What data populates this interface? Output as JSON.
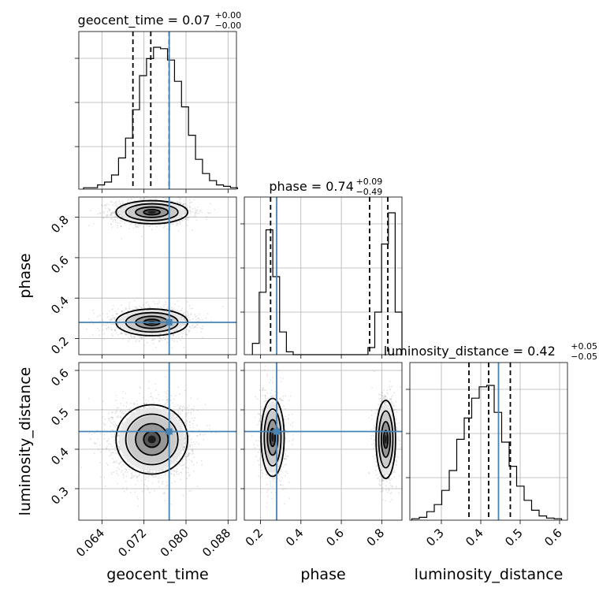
{
  "chart_data": {
    "type": "corner",
    "parameters": [
      "geocent_time",
      "phase",
      "luminosity_distance"
    ],
    "titles": [
      {
        "param": "geocent_time",
        "main": "geocent_time = 0.07",
        "sup": "+0.00",
        "sub": "−0.00"
      },
      {
        "param": "phase",
        "main": "phase = 0.74",
        "sup": "+0.09",
        "sub": "−0.49"
      },
      {
        "param": "luminosity_distance",
        "main": "luminosity_distance = 0.42",
        "sup": "+0.05",
        "sub": "−0.05"
      }
    ],
    "axis_labels": {
      "x": [
        "geocent_time",
        "phase",
        "luminosity_distance"
      ],
      "y": [
        "phase",
        "luminosity_distance"
      ]
    },
    "ranges": {
      "geocent_time": [
        0.0596,
        0.0896
      ],
      "phase": [
        0.12,
        0.9
      ],
      "luminosity_distance": [
        0.22,
        0.62
      ]
    },
    "ticks": {
      "geocent_time": {
        "values": [
          0.064,
          0.072,
          0.08,
          0.088
        ],
        "labels": [
          "0.064",
          "0.072",
          "0.080",
          "0.088"
        ]
      },
      "phase": {
        "values": [
          0.2,
          0.4,
          0.6,
          0.8
        ],
        "labels": [
          "0.2",
          "0.4",
          "0.6",
          "0.8"
        ]
      },
      "luminosity_distance": {
        "values": [
          0.3,
          0.4,
          0.5,
          0.6
        ],
        "labels": [
          "0.3",
          "0.4",
          "0.5",
          "0.6"
        ]
      }
    },
    "injection": {
      "geocent_time": 0.0768,
      "phase": 0.28,
      "luminosity_distance": 0.445
    },
    "quantiles": {
      "geocent_time": [
        0.0699,
        0.0733,
        0.0768
      ],
      "phase": [
        0.25,
        0.74,
        0.83
      ],
      "luminosity_distance": [
        0.37,
        0.42,
        0.475
      ]
    },
    "hist_geocent_time": {
      "bins": [
        0.0605,
        0.0898
      ],
      "counts": [
        0.01,
        0.01,
        0.03,
        0.05,
        0.1,
        0.22,
        0.36,
        0.56,
        0.8,
        0.92,
        1.0,
        0.99,
        0.91,
        0.76,
        0.58,
        0.38,
        0.21,
        0.11,
        0.06,
        0.03,
        0.02,
        0.01
      ]
    },
    "hist_phase": {
      "bins": [
        0.16,
        0.9
      ],
      "counts": [
        0.08,
        0.44,
        0.88,
        0.55,
        0.16,
        0.02,
        0,
        0,
        0,
        0,
        0,
        0,
        0,
        0,
        0,
        0,
        0,
        0.05,
        0.3,
        0.78,
        1.0,
        0.3
      ]
    },
    "hist_luminosity_distance": {
      "bins": [
        0.225,
        0.605
      ],
      "counts": [
        0.01,
        0.02,
        0.06,
        0.11,
        0.21,
        0.35,
        0.57,
        0.72,
        0.86,
        0.94,
        0.95,
        0.76,
        0.55,
        0.38,
        0.24,
        0.14,
        0.07,
        0.03,
        0.015,
        0.01
      ]
    },
    "modes": {
      "phase_vs_geocent_time": [
        {
          "x": 0.0735,
          "y": 0.825,
          "sx": 0.0031,
          "sy": 0.026,
          "n": 1700
        },
        {
          "x": 0.0735,
          "y": 0.28,
          "sx": 0.0031,
          "sy": 0.03,
          "n": 1700
        }
      ],
      "luminosity_distance_vs_geocent_time": [
        {
          "x": 0.0735,
          "y": 0.425,
          "sx": 0.0031,
          "sy": 0.04,
          "n": 2600
        }
      ],
      "luminosity_distance_vs_phase": [
        {
          "x": 0.26,
          "y": 0.43,
          "sx": 0.026,
          "sy": 0.045,
          "n": 1200
        },
        {
          "x": 0.82,
          "y": 0.425,
          "sx": 0.022,
          "sy": 0.045,
          "n": 1200
        }
      ]
    },
    "grid": true
  }
}
